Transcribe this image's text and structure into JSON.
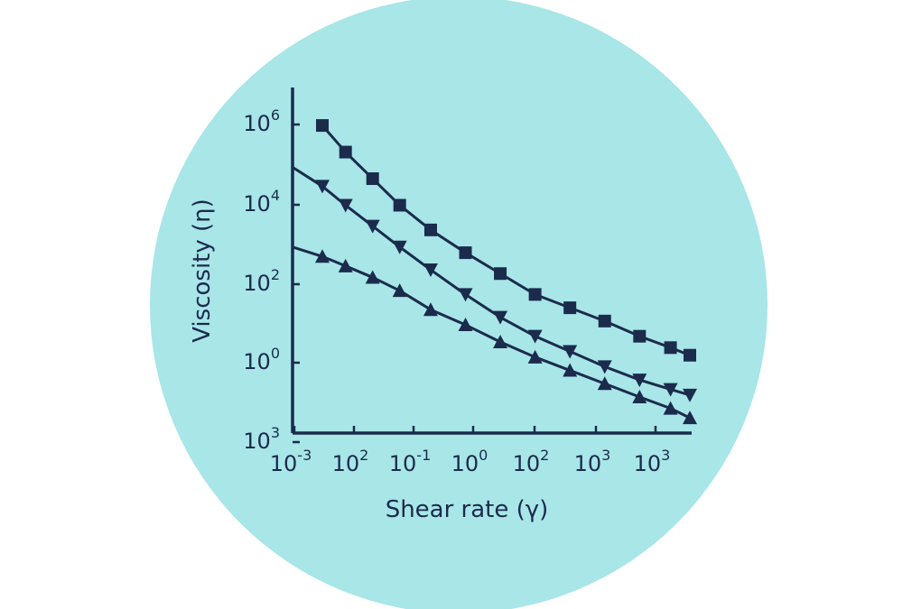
{
  "colors": {
    "background_circle": "#a8e6e8",
    "ink": "#1b2b4c",
    "page": "#ffffff"
  },
  "chart_data": {
    "type": "line",
    "title": "",
    "xlabel": "Shear rate (γ)",
    "ylabel": "Viscosity (η)",
    "x_scale": "log",
    "y_scale": "log",
    "x_tick_labels": [
      {
        "base": "10",
        "exp": "-3"
      },
      {
        "base": "10",
        "exp": "2"
      },
      {
        "base": "10",
        "exp": "-1"
      },
      {
        "base": "10",
        "exp": "0"
      },
      {
        "base": "10",
        "exp": "2"
      },
      {
        "base": "10",
        "exp": "3"
      },
      {
        "base": "10",
        "exp": "3"
      }
    ],
    "y_tick_labels": [
      {
        "base": "10",
        "exp": "6"
      },
      {
        "base": "10",
        "exp": "4"
      },
      {
        "base": "10",
        "exp": "2"
      },
      {
        "base": "10",
        "exp": "0"
      },
      {
        "base": "10",
        "exp": "3"
      }
    ],
    "y_range_log10": [
      -2.1,
      7.0
    ],
    "grid": false,
    "legend": "none",
    "x_point_positions": [
      0.05,
      0.11,
      0.18,
      0.25,
      0.33,
      0.42,
      0.51,
      0.6,
      0.69,
      0.78,
      0.87,
      0.95,
      1.0
    ],
    "series": [
      {
        "marker": "square",
        "line_start_log10": null,
        "log10_values": [
          6.0,
          5.3,
          4.6,
          3.9,
          3.25,
          2.65,
          2.1,
          1.55,
          1.2,
          0.85,
          0.45,
          0.15,
          -0.05
        ]
      },
      {
        "marker": "triangle-down",
        "line_start_log10": 4.9,
        "log10_values": [
          4.4,
          3.9,
          3.35,
          2.8,
          2.2,
          1.55,
          0.95,
          0.45,
          0.05,
          -0.35,
          -0.7,
          -0.95,
          -1.1
        ]
      },
      {
        "marker": "triangle-up",
        "line_start_log10": 2.8,
        "log10_values": [
          2.55,
          2.3,
          2.0,
          1.65,
          1.15,
          0.75,
          0.3,
          -0.1,
          -0.45,
          -0.8,
          -1.15,
          -1.45,
          -1.7
        ]
      }
    ]
  }
}
